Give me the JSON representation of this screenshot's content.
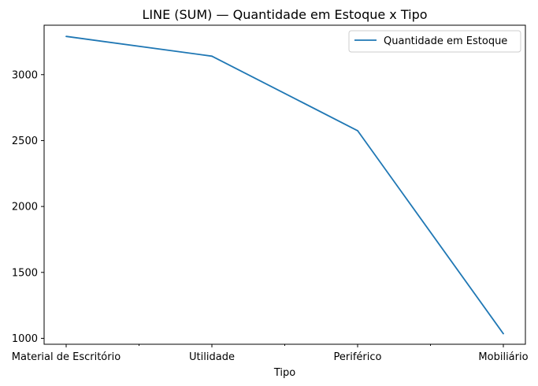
{
  "chart_data": {
    "type": "line",
    "title": "LINE (SUM) — Quantidade em Estoque x Tipo",
    "xlabel": "Tipo",
    "ylabel": "",
    "categories": [
      "Material de Escritório",
      "Utilidade",
      "Periférico",
      "Mobiliário"
    ],
    "series": [
      {
        "name": "Quantidade em Estoque",
        "values": [
          3290,
          3140,
          2575,
          1035
        ],
        "color": "#1f77b4"
      }
    ],
    "ylim": [
      955,
      3375
    ],
    "yticks": [
      1000,
      1500,
      2000,
      2500,
      3000
    ],
    "ytick_labels": [
      "1000",
      "1500",
      "2000",
      "2500",
      "3000"
    ],
    "grid": false,
    "legend_position": "top-right"
  }
}
